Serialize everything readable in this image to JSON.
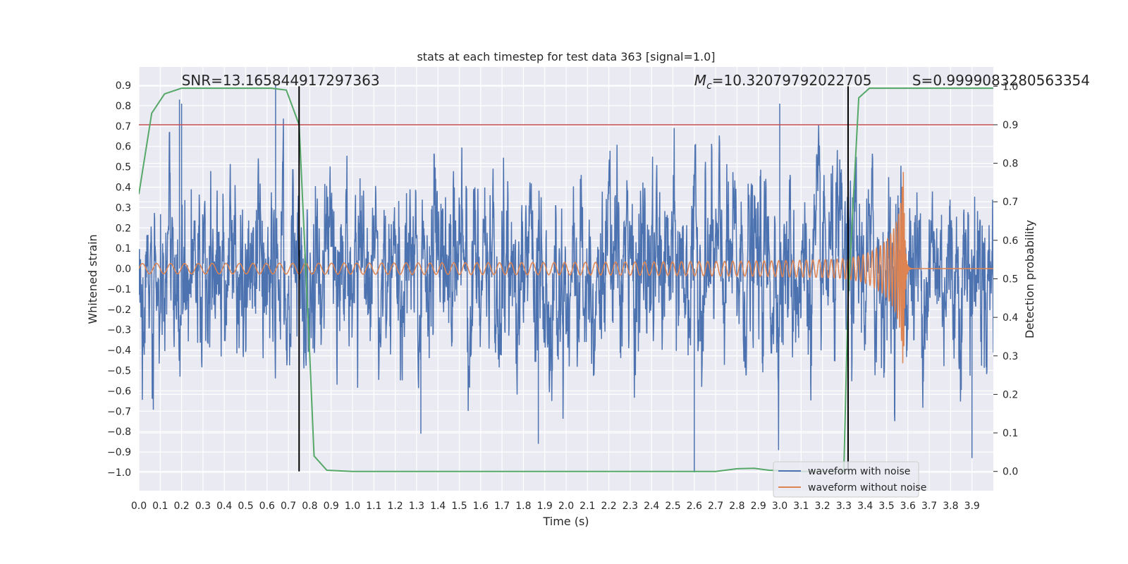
{
  "chart_data": {
    "type": "line",
    "title": "stats at each timestep for test data 363 [signal=1.0]",
    "xlabel": "Time (s)",
    "ylabel": "Whitened strain",
    "ylabel_right": "Detection probability",
    "xlim": [
      0.0,
      4.0
    ],
    "ylim": [
      -1.09,
      0.99
    ],
    "ylim_right": [
      -0.05,
      1.05
    ],
    "x_ticks": [
      0.0,
      0.1,
      0.2,
      0.3,
      0.4,
      0.5,
      0.6,
      0.7,
      0.8,
      0.9,
      1.0,
      1.1,
      1.2,
      1.3,
      1.4,
      1.5,
      1.6,
      1.7,
      1.8,
      1.9,
      2.0,
      2.1,
      2.2,
      2.3,
      2.4,
      2.5,
      2.6,
      2.7,
      2.8,
      2.9,
      3.0,
      3.1,
      3.2,
      3.3,
      3.4,
      3.5,
      3.6,
      3.7,
      3.8,
      3.9
    ],
    "x_tick_labels": [
      "0.0",
      "0.1",
      "0.2",
      "0.3",
      "0.4",
      "0.5",
      "0.6",
      "0.7",
      "0.8",
      "0.9",
      "1.0",
      "1.1",
      "1.2",
      "1.3",
      "1.4",
      "1.5",
      "1.6",
      "1.7",
      "1.8",
      "1.9",
      "2.0",
      "2.1",
      "2.2",
      "2.3",
      "2.4",
      "2.5",
      "2.6",
      "2.7",
      "2.8",
      "2.9",
      "3.0",
      "3.1",
      "3.2",
      "3.3",
      "3.4",
      "3.5",
      "3.6",
      "3.7",
      "3.8",
      "3.9"
    ],
    "y_ticks": [
      0.9,
      0.8,
      0.7,
      0.6,
      0.5,
      0.4,
      0.3,
      0.2,
      0.1,
      0.0,
      -0.1,
      -0.2,
      -0.3,
      -0.4,
      -0.5,
      -0.6,
      -0.7,
      -0.8,
      -0.9,
      -1.0
    ],
    "y_tick_labels": [
      "0.9",
      "0.8",
      "0.7",
      "0.6",
      "0.5",
      "0.4",
      "0.3",
      "0.2",
      "0.1",
      "0.0",
      "−0.1",
      "−0.2",
      "−0.3",
      "−0.4",
      "−0.5",
      "−0.6",
      "−0.7",
      "−0.8",
      "−0.9",
      "−1.0"
    ],
    "y_right_ticks": [
      1.0,
      0.9,
      0.8,
      0.7,
      0.6,
      0.5,
      0.4,
      0.3,
      0.2,
      0.1,
      0.0
    ],
    "y_right_tick_labels": [
      "1.0",
      "0.9",
      "0.8",
      "0.7",
      "0.6",
      "0.5",
      "0.4",
      "0.3",
      "0.2",
      "0.1",
      "0.0"
    ],
    "grid": true,
    "legend_position": "bottom-right",
    "series": [
      {
        "name": "waveform with noise",
        "color": "#4c72b0",
        "axis": "left",
        "kind": "noise",
        "typical_amplitude": 0.25,
        "peak_values": [
          0.9,
          0.83,
          0.81,
          0.81,
          -0.81,
          -0.86,
          -1.0,
          -0.93
        ]
      },
      {
        "name": "waveform without noise",
        "color": "#dd8452",
        "axis": "left",
        "kind": "chirp",
        "t_start": 0.0,
        "t_merger": 3.58,
        "start_amplitude": 0.025,
        "peak_amplitude": 0.51,
        "start_frequency_hz": 15,
        "end_frequency_hz": 220
      },
      {
        "name": "detection probability",
        "color": "#55a868",
        "axis": "right",
        "x": [
          0.0,
          0.06,
          0.12,
          0.2,
          0.3,
          0.5,
          0.62,
          0.69,
          0.75,
          0.8,
          0.82,
          0.88,
          1.0,
          1.5,
          2.0,
          2.5,
          2.6,
          2.7,
          2.8,
          2.88,
          2.95,
          3.1,
          3.2,
          3.3,
          3.32,
          3.37,
          3.42,
          3.5,
          3.7,
          4.0
        ],
        "y": [
          0.72,
          0.93,
          0.98,
          0.995,
          0.995,
          0.995,
          0.995,
          0.99,
          0.9,
          0.3,
          0.04,
          0.003,
          0.0,
          0.0,
          0.0,
          0.0,
          0.0,
          0.0,
          0.007,
          0.008,
          0.003,
          0.0,
          0.0,
          0.0,
          0.45,
          0.97,
          0.995,
          0.995,
          0.995,
          0.995
        ]
      }
    ],
    "threshold": {
      "axis": "right",
      "value": 0.9,
      "color": "#c44e52"
    },
    "vlines": [
      {
        "x": 0.75,
        "color": "#000000"
      },
      {
        "x": 3.32,
        "color": "#000000"
      }
    ],
    "annotations": [
      {
        "text": "SNR=13.165844917297363",
        "anchor_x": 0.2
      },
      {
        "text": "M",
        "sub": "c",
        "rest": "=10.32079792022705",
        "anchor_x": 2.6
      },
      {
        "text": "S=0.9999083280563354",
        "anchor_x": 3.62
      }
    ]
  }
}
